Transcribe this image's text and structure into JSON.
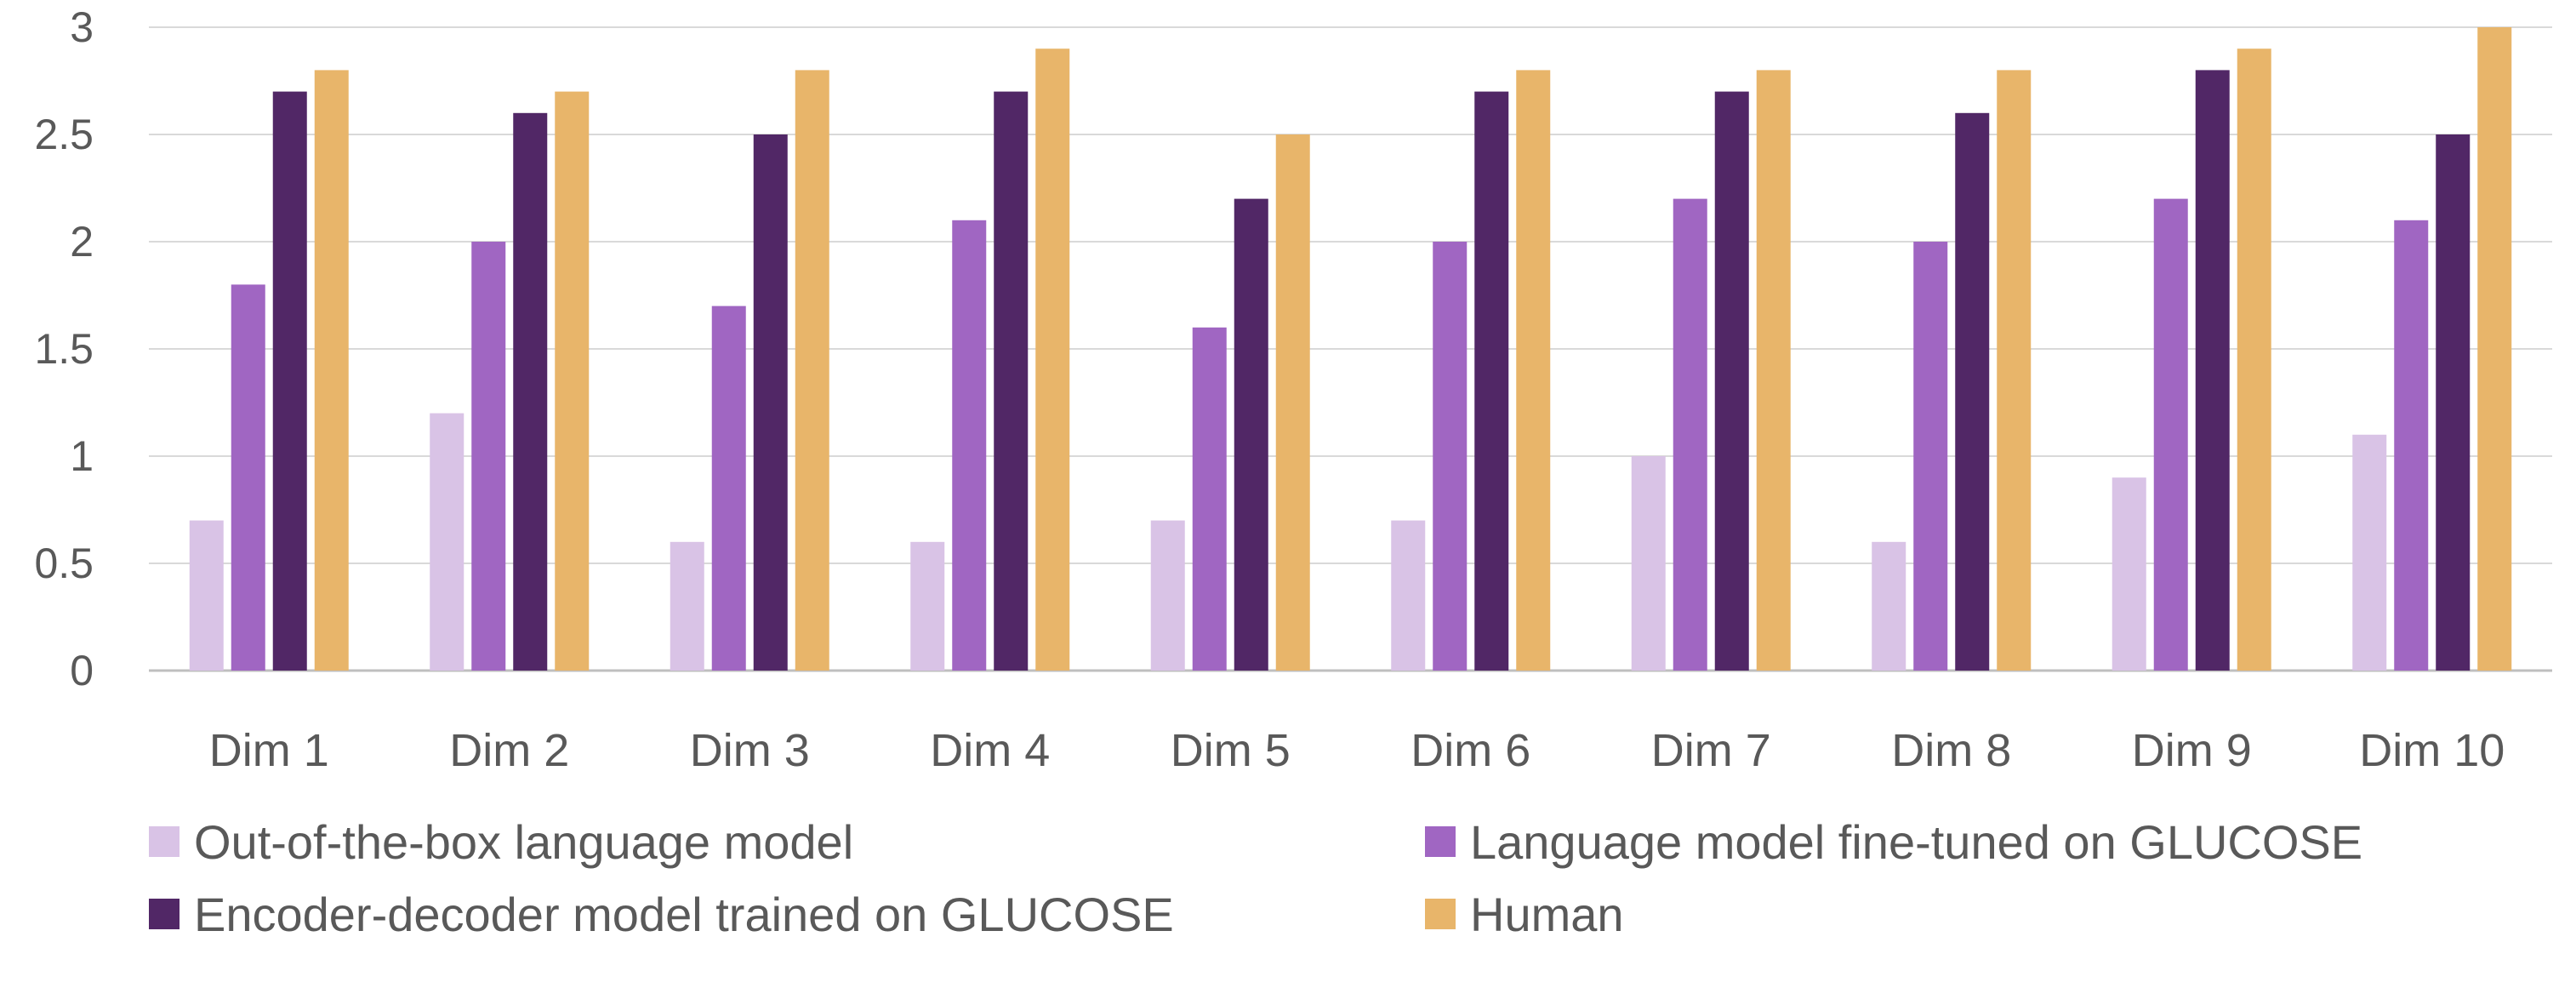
{
  "chart_data": {
    "type": "bar",
    "title": "",
    "xlabel": "",
    "ylabel": "",
    "ylim": [
      0,
      3
    ],
    "yticks": [
      "0",
      "0.5",
      "1",
      "1.5",
      "2",
      "2.5",
      "3"
    ],
    "grid": true,
    "legend_position": "bottom",
    "categories": [
      "Dim 1",
      "Dim 2",
      "Dim 3",
      "Dim 4",
      "Dim 5",
      "Dim 6",
      "Dim 7",
      "Dim 8",
      "Dim 9",
      "Dim 10"
    ],
    "series": [
      {
        "name": "Out-of-the-box language model",
        "color": "#d9c3e6",
        "values": [
          0.7,
          1.2,
          0.6,
          0.6,
          0.7,
          0.7,
          1.0,
          0.6,
          0.9,
          1.1
        ]
      },
      {
        "name": "Language model fine-tuned on GLUCOSE",
        "color": "#a066c2",
        "values": [
          1.8,
          2.0,
          1.7,
          2.1,
          1.6,
          2.0,
          2.2,
          2.0,
          2.2,
          2.1
        ]
      },
      {
        "name": "Encoder-decoder model trained on GLUCOSE",
        "color": "#512766",
        "values": [
          2.7,
          2.6,
          2.5,
          2.7,
          2.2,
          2.7,
          2.7,
          2.6,
          2.8,
          2.5
        ]
      },
      {
        "name": "Human",
        "color": "#e8b56a",
        "values": [
          2.8,
          2.7,
          2.8,
          2.9,
          2.5,
          2.8,
          2.8,
          2.8,
          2.9,
          3.0
        ]
      }
    ]
  }
}
